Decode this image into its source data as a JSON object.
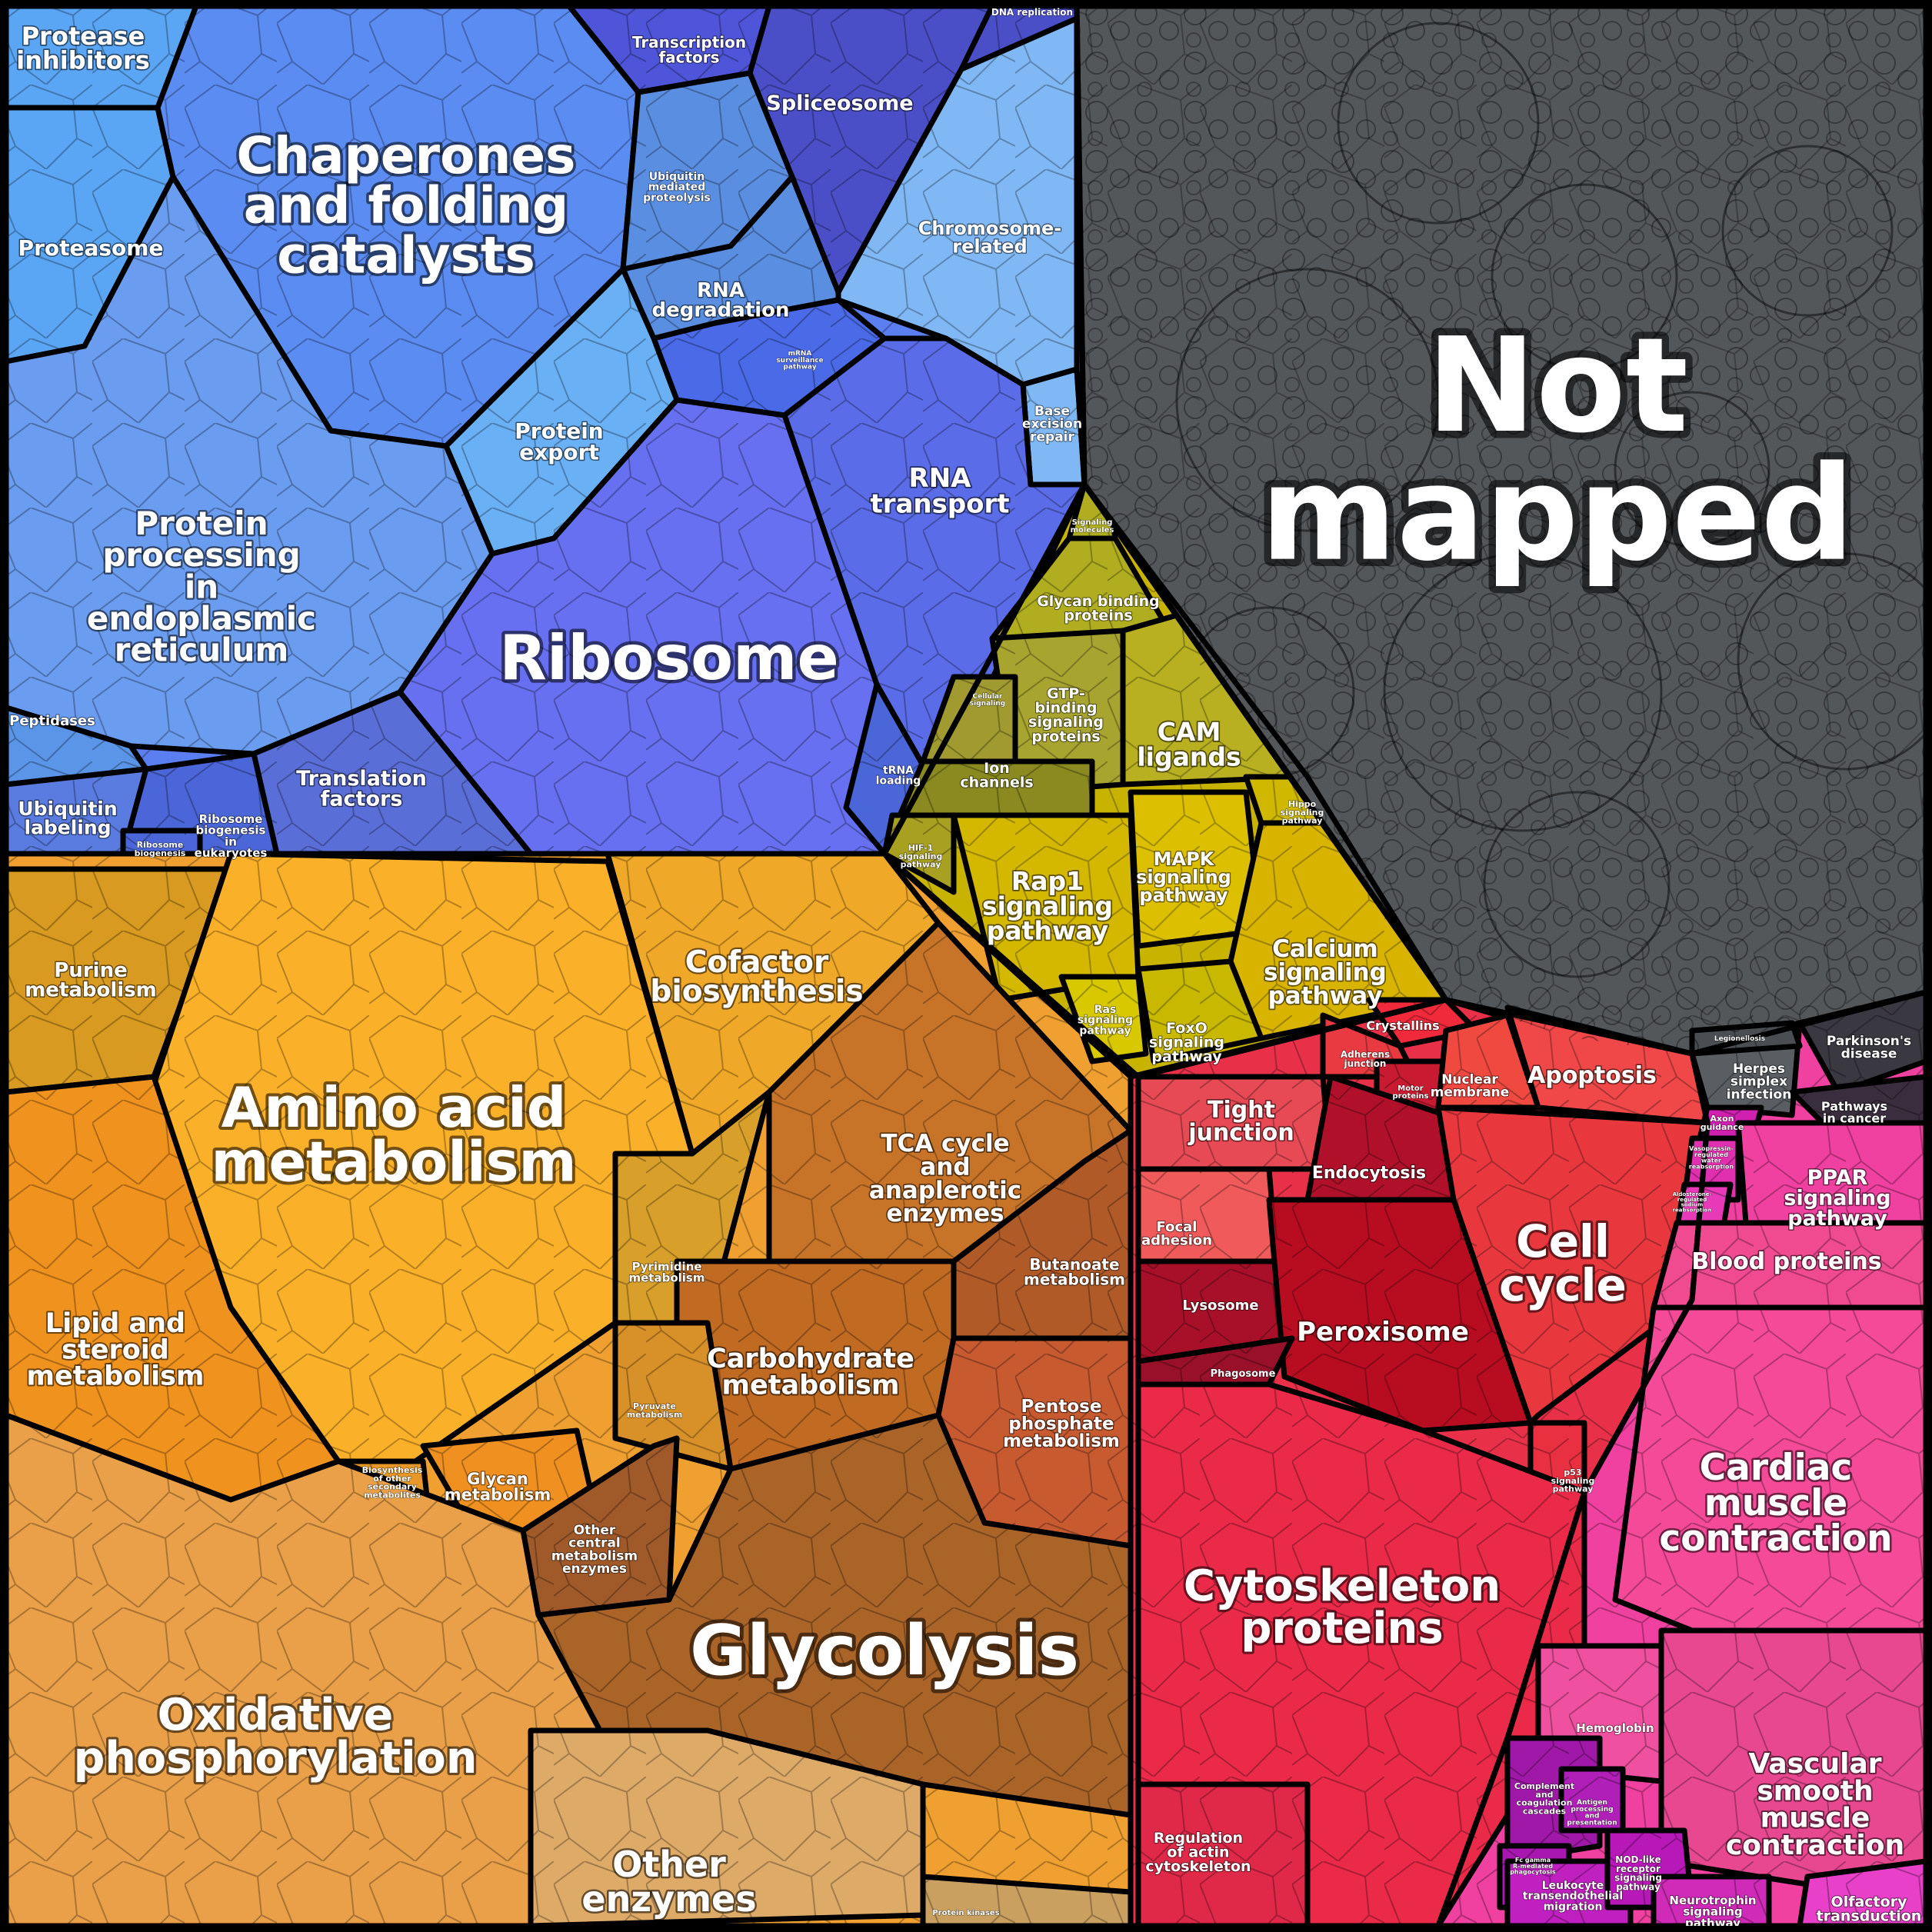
{
  "diagram": {
    "groups": [
      {
        "id": "genetic",
        "color": "#5b7ff0",
        "cells": [
          {
            "key": "protease-inhibitors",
            "label": [
              "Protease",
              "inhibitors"
            ],
            "color": "#5aa6f5"
          },
          {
            "key": "proteasome",
            "label": [
              "Proteasome"
            ],
            "color": "#5aa6f5"
          },
          {
            "key": "chaperones",
            "label": [
              "Chaperones",
              "and folding",
              "catalysts"
            ],
            "color": "#5b8cf2"
          },
          {
            "key": "transcription-factors",
            "label": [
              "Transcription",
              "factors"
            ],
            "color": "#4f55d8"
          },
          {
            "key": "spliceosome",
            "label": [
              "Spliceosome"
            ],
            "color": "#4a4fc8"
          },
          {
            "key": "dna-replication",
            "label": [
              "DNA replication"
            ],
            "color": "#4a4fc8"
          },
          {
            "key": "ubiquitin-mediated",
            "label": [
              "Ubiquitin",
              "mediated",
              "proteolysis"
            ],
            "color": "#5a8ee0"
          },
          {
            "key": "rna-degradation",
            "label": [
              "RNA",
              "degradation"
            ],
            "color": "#5a8ee0"
          },
          {
            "key": "chromosome-related",
            "label": [
              "Chromosome-",
              "related"
            ],
            "color": "#80b8f5"
          },
          {
            "key": "base-excision",
            "label": [
              "Base",
              "excision",
              "repair"
            ],
            "color": "#80b8f5"
          },
          {
            "key": "mrna-surveillance",
            "label": [
              "mRNA",
              "surveillance",
              "pathway"
            ],
            "color": "#4a6ae8"
          },
          {
            "key": "protein-export",
            "label": [
              "Protein",
              "export"
            ],
            "color": "#6ab0f5"
          },
          {
            "key": "protein-processing",
            "label": [
              "Protein",
              "processing",
              "in",
              "endoplasmic",
              "reticulum"
            ],
            "color": "#6a9cf0"
          },
          {
            "key": "rna-transport",
            "label": [
              "RNA",
              "transport"
            ],
            "color": "#5a6ce8"
          },
          {
            "key": "ribosome",
            "label": [
              "Ribosome"
            ],
            "color": "#6670f0"
          },
          {
            "key": "peptidases",
            "label": [
              "Peptidases"
            ],
            "color": "#5a95e8"
          },
          {
            "key": "ubiquitin-labeling",
            "label": [
              "Ubiquitin",
              "labeling"
            ],
            "color": "#5a7ce0"
          },
          {
            "key": "ribosome-biogenesis-euk",
            "label": [
              "Ribosome",
              "biogenesis",
              "in",
              "eukaryotes"
            ],
            "color": "#4a66d8"
          },
          {
            "key": "ribosome-biogenesis",
            "label": [
              "Ribosome",
              "biogenesis"
            ],
            "color": "#4a66d8"
          },
          {
            "key": "translation-factors",
            "label": [
              "Translation",
              "factors"
            ],
            "color": "#5a6ed8"
          },
          {
            "key": "trna-loading",
            "label": [
              "tRNA",
              "loading"
            ],
            "color": "#4a66d8"
          }
        ]
      },
      {
        "id": "signaling",
        "color": "#c8b400",
        "cells": [
          {
            "key": "signaling-molecules",
            "label": [
              "Signaling",
              "molecules"
            ],
            "color": "#b0ad20"
          },
          {
            "key": "glycan-binding",
            "label": [
              "Glycan binding",
              "proteins"
            ],
            "color": "#b0ad20"
          },
          {
            "key": "gtp-binding",
            "label": [
              "GTP-",
              "binding",
              "signaling",
              "proteins"
            ],
            "color": "#a8a430"
          },
          {
            "key": "cellular-signaling",
            "label": [
              "Cellular",
              "signaling"
            ],
            "color": "#a09a30"
          },
          {
            "key": "cam-ligands",
            "label": [
              "CAM",
              "ligands"
            ],
            "color": "#b8b020"
          },
          {
            "key": "ion-channels",
            "label": [
              "Ion",
              "channels"
            ],
            "color": "#8a8a20"
          },
          {
            "key": "hif1",
            "label": [
              "HIF-1",
              "signaling",
              "pathway"
            ],
            "color": "#a8a020"
          },
          {
            "key": "rap1",
            "label": [
              "Rap1",
              "signaling",
              "pathway"
            ],
            "color": "#d4b800"
          },
          {
            "key": "mapk",
            "label": [
              "MAPK",
              "signaling",
              "pathway"
            ],
            "color": "#dcc000"
          },
          {
            "key": "hippo",
            "label": [
              "Hippo",
              "signaling",
              "pathway"
            ],
            "color": "#d0b800"
          },
          {
            "key": "calcium",
            "label": [
              "Calcium",
              "signaling",
              "pathway"
            ],
            "color": "#d8b400"
          },
          {
            "key": "ras",
            "label": [
              "Ras",
              "signaling",
              "pathway"
            ],
            "color": "#d8c800"
          },
          {
            "key": "foxo",
            "label": [
              "FoxO",
              "signaling",
              "pathway"
            ],
            "color": "#c8b800"
          }
        ]
      },
      {
        "id": "not-mapped",
        "color": "#54575a",
        "cells": [
          {
            "key": "not-mapped",
            "label": [
              "Not",
              "mapped"
            ],
            "color": "#54575a"
          }
        ]
      },
      {
        "id": "disease",
        "color": "#444a50",
        "cells": [
          {
            "key": "parkinsons",
            "label": [
              "Parkinson's",
              "disease"
            ],
            "color": "#3a3840"
          },
          {
            "key": "herpes",
            "label": [
              "Herpes",
              "simplex",
              "infection"
            ],
            "color": "#5a5e62"
          },
          {
            "key": "legionellosis",
            "label": [
              "Legionellosis"
            ],
            "color": "#4a4e52"
          },
          {
            "key": "pathways-in-cancer",
            "label": [
              "Pathways",
              "in cancer"
            ],
            "color": "#3a2e3e"
          }
        ]
      },
      {
        "id": "metabolism",
        "color": "#f0a030",
        "cells": [
          {
            "key": "purine",
            "label": [
              "Purine",
              "metabolism"
            ],
            "color": "#d89a20"
          },
          {
            "key": "amino-acid",
            "label": [
              "Amino acid",
              "metabolism"
            ],
            "color": "#fbb02a"
          },
          {
            "key": "cofactor",
            "label": [
              "Cofactor",
              "biosynthesis"
            ],
            "color": "#f0a828"
          },
          {
            "key": "lipid",
            "label": [
              "Lipid and",
              "steroid",
              "metabolism"
            ],
            "color": "#f0921e"
          },
          {
            "key": "pyrimidine",
            "label": [
              "Pyrimidine",
              "metabolism"
            ],
            "color": "#d8a02a"
          },
          {
            "key": "tca",
            "label": [
              "TCA cycle",
              "and",
              "anaplerotic",
              "enzymes"
            ],
            "color": "#c87428"
          },
          {
            "key": "butanoate",
            "label": [
              "Butanoate",
              "metabolism"
            ],
            "color": "#b05a28"
          },
          {
            "key": "carbohydrate",
            "label": [
              "Carbohydrate",
              "metabolism"
            ],
            "color": "#c06a22"
          },
          {
            "key": "pentose",
            "label": [
              "Pentose",
              "phosphate",
              "metabolism"
            ],
            "color": "#c85a30"
          },
          {
            "key": "pyruvate",
            "label": [
              "Pyruvate",
              "metabolism"
            ],
            "color": "#d89028"
          },
          {
            "key": "secondary-metabolites",
            "label": [
              "Biosynthesis",
              "of other",
              "secondary",
              "metabolites"
            ],
            "color": "#e89828"
          },
          {
            "key": "glycan-metabolism",
            "label": [
              "Glycan",
              "metabolism"
            ],
            "color": "#f09020"
          },
          {
            "key": "other-central",
            "label": [
              "Other",
              "central",
              "metabolism",
              "enzymes"
            ],
            "color": "#a05a2a"
          },
          {
            "key": "glycolysis",
            "label": [
              "Glycolysis"
            ],
            "color": "#aa6428"
          },
          {
            "key": "oxidative",
            "label": [
              "Oxidative",
              "phosphorylation"
            ],
            "color": "#eaa048"
          },
          {
            "key": "other-enzymes",
            "label": [
              "Other",
              "enzymes"
            ],
            "color": "#deaa68"
          },
          {
            "key": "protein-kinases",
            "label": [
              "Protein kinases"
            ],
            "color": "#caa060"
          }
        ]
      },
      {
        "id": "cellular",
        "color": "#e83048",
        "cells": [
          {
            "key": "crystallins",
            "label": [
              "Crystallins"
            ],
            "color": "#f02a3a"
          },
          {
            "key": "adherens",
            "label": [
              "Adherens",
              "junction"
            ],
            "color": "#e83a40"
          },
          {
            "key": "motor-proteins",
            "label": [
              "Motor",
              "proteins"
            ],
            "color": "#c81a30"
          },
          {
            "key": "nuclear-membrane",
            "label": [
              "Nuclear",
              "membrane"
            ],
            "color": "#f04a40"
          },
          {
            "key": "apoptosis",
            "label": [
              "Apoptosis"
            ],
            "color": "#f04848"
          },
          {
            "key": "tight-junction",
            "label": [
              "Tight",
              "junction"
            ],
            "color": "#e84a55"
          },
          {
            "key": "endocytosis",
            "label": [
              "Endocytosis"
            ],
            "color": "#b0102a"
          },
          {
            "key": "cell-cycle",
            "label": [
              "Cell",
              "cycle"
            ],
            "color": "#e8383e"
          },
          {
            "key": "focal-adhesion",
            "label": [
              "Focal",
              "adhesion"
            ],
            "color": "#f05a5a"
          },
          {
            "key": "lysosome",
            "label": [
              "Lysosome"
            ],
            "color": "#a8102a"
          },
          {
            "key": "peroxisome",
            "label": [
              "Peroxisome"
            ],
            "color": "#b80c20"
          },
          {
            "key": "phagosome",
            "label": [
              "Phagosome"
            ],
            "color": "#98102a"
          },
          {
            "key": "p53",
            "label": [
              "p53",
              "signaling",
              "pathway"
            ],
            "color": "#e83040"
          },
          {
            "key": "cytoskeleton",
            "label": [
              "Cytoskeleton",
              "proteins"
            ],
            "color": "#ea2a48"
          },
          {
            "key": "regulation-actin",
            "label": [
              "Regulation",
              "of actin",
              "cytoskeleton"
            ],
            "color": "#e02848"
          }
        ]
      },
      {
        "id": "organismal",
        "color": "#f040a0",
        "cells": [
          {
            "key": "axon-guidance",
            "label": [
              "Axon",
              "guidance"
            ],
            "color": "#d020b0"
          },
          {
            "key": "ppar",
            "label": [
              "PPAR",
              "signaling",
              "pathway"
            ],
            "color": "#f040a0"
          },
          {
            "key": "vasopressin",
            "label": [
              "Vasopressin-",
              "regulated",
              "water",
              "reabsorption"
            ],
            "color": "#e030b0"
          },
          {
            "key": "aldosterone",
            "label": [
              "Aldosterone-",
              "regulated",
              "sodium",
              "reabsorption"
            ],
            "color": "#e83ab8"
          },
          {
            "key": "blood-proteins",
            "label": [
              "Blood proteins"
            ],
            "color": "#f04a90"
          },
          {
            "key": "cardiac",
            "label": [
              "Cardiac",
              "muscle",
              "contraction"
            ],
            "color": "#f54a98"
          },
          {
            "key": "hemoglobin",
            "label": [
              "Hemoglobin"
            ],
            "color": "#f050a0"
          },
          {
            "key": "vascular",
            "label": [
              "Vascular",
              "smooth",
              "muscle",
              "contraction"
            ],
            "color": "#e84890"
          },
          {
            "key": "complement",
            "label": [
              "Complement",
              "and",
              "coagulation",
              "cascades"
            ],
            "color": "#a018a8"
          },
          {
            "key": "antigen",
            "label": [
              "Antigen",
              "processing",
              "and",
              "presentation"
            ],
            "color": "#b020b8"
          },
          {
            "key": "fc-gamma",
            "label": [
              "Fc gamma",
              "R-mediated",
              "phagocytosis"
            ],
            "color": "#a818b0"
          },
          {
            "key": "leukocyte",
            "label": [
              "Leukocyte",
              "transendothelial",
              "migration"
            ],
            "color": "#c020c0"
          },
          {
            "key": "nod-like",
            "label": [
              "NOD-like",
              "receptor",
              "signaling",
              "pathway"
            ],
            "color": "#b818b8"
          },
          {
            "key": "neurotrophin",
            "label": [
              "Neurotrophin",
              "signaling",
              "pathway"
            ],
            "color": "#d02ab8"
          },
          {
            "key": "olfactory",
            "label": [
              "Olfactory",
              "transduction"
            ],
            "color": "#e840c8"
          }
        ]
      }
    ]
  }
}
